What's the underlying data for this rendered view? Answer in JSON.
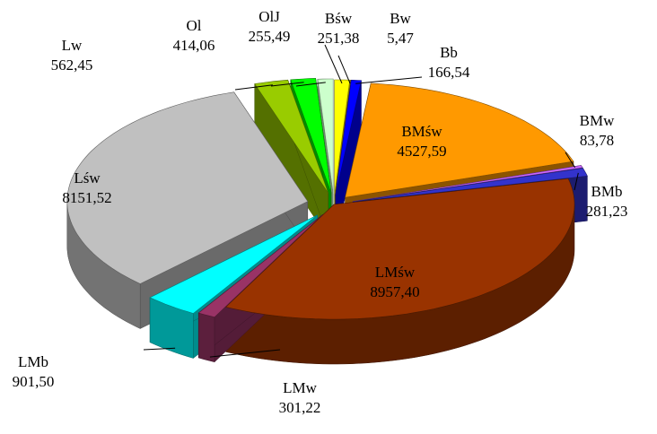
{
  "chart_data": {
    "type": "pie3d",
    "categories": [
      "Bśw",
      "Bw",
      "Bb",
      "BMśw",
      "BMw",
      "BMb",
      "LMśw",
      "LMw",
      "LMb",
      "Lśw",
      "Lw",
      "Ol",
      "OlJ"
    ],
    "values": [
      251.38,
      5.47,
      166.54,
      4527.59,
      83.78,
      281.23,
      8957.4,
      301.22,
      901.5,
      8151.52,
      562.45,
      414.06,
      255.49
    ],
    "value_labels": [
      "251,38",
      "5,47",
      "166,54",
      "4527,59",
      "83,78",
      "281,23",
      "8957,40",
      "301,22",
      "901,50",
      "8151,52",
      "562,45",
      "414,06",
      "255,49"
    ],
    "colors": [
      "#ffff00",
      "#ffcc00",
      "#0000ff",
      "#ff9900",
      "#cc66ff",
      "#3333cc",
      "#993300",
      "#993366",
      "#00ffff",
      "#c0c0c0",
      "#99cc00",
      "#00ff00",
      "#ccffcc"
    ]
  }
}
